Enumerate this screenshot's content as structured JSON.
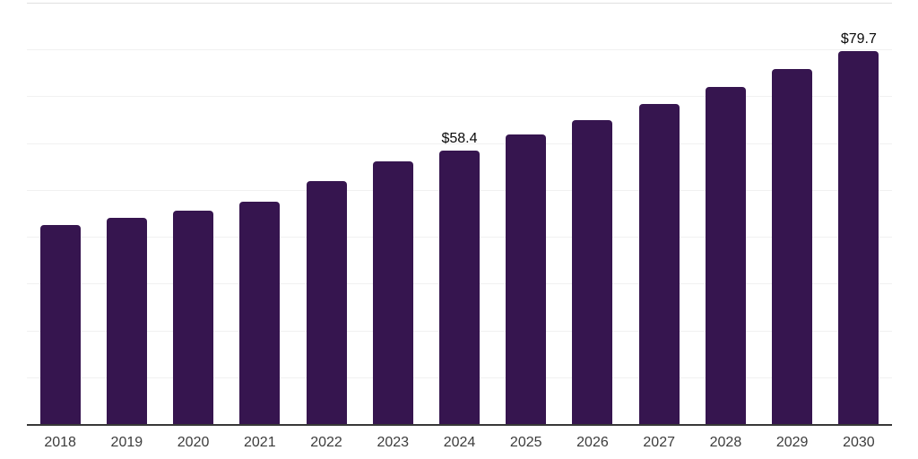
{
  "chart_data": {
    "type": "bar",
    "title": "",
    "xlabel": "",
    "ylabel": "",
    "categories": [
      "2018",
      "2019",
      "2020",
      "2021",
      "2022",
      "2023",
      "2024",
      "2025",
      "2026",
      "2027",
      "2028",
      "2029",
      "2030"
    ],
    "values": [
      42.5,
      44.0,
      45.6,
      47.5,
      51.9,
      56.1,
      58.4,
      61.9,
      64.9,
      68.4,
      72.0,
      75.8,
      79.7
    ],
    "data_labels": [
      {
        "category": "2024",
        "index": 6,
        "text": "$58.4"
      },
      {
        "category": "2030",
        "index": 12,
        "text": "$79.7"
      }
    ],
    "ylim": [
      0,
      90
    ],
    "gridline_step": 10,
    "grid": "on",
    "legend": "none",
    "y_tick_labels_visible": false,
    "colors": {
      "bar": "#36154f",
      "gridline": "#f1f1f1",
      "plot_top_border": "#e0e0e0",
      "axis_line": "#383838",
      "tick_label": "#3c3c3c",
      "data_label": "#0a0a0a",
      "background": "#ffffff"
    }
  }
}
